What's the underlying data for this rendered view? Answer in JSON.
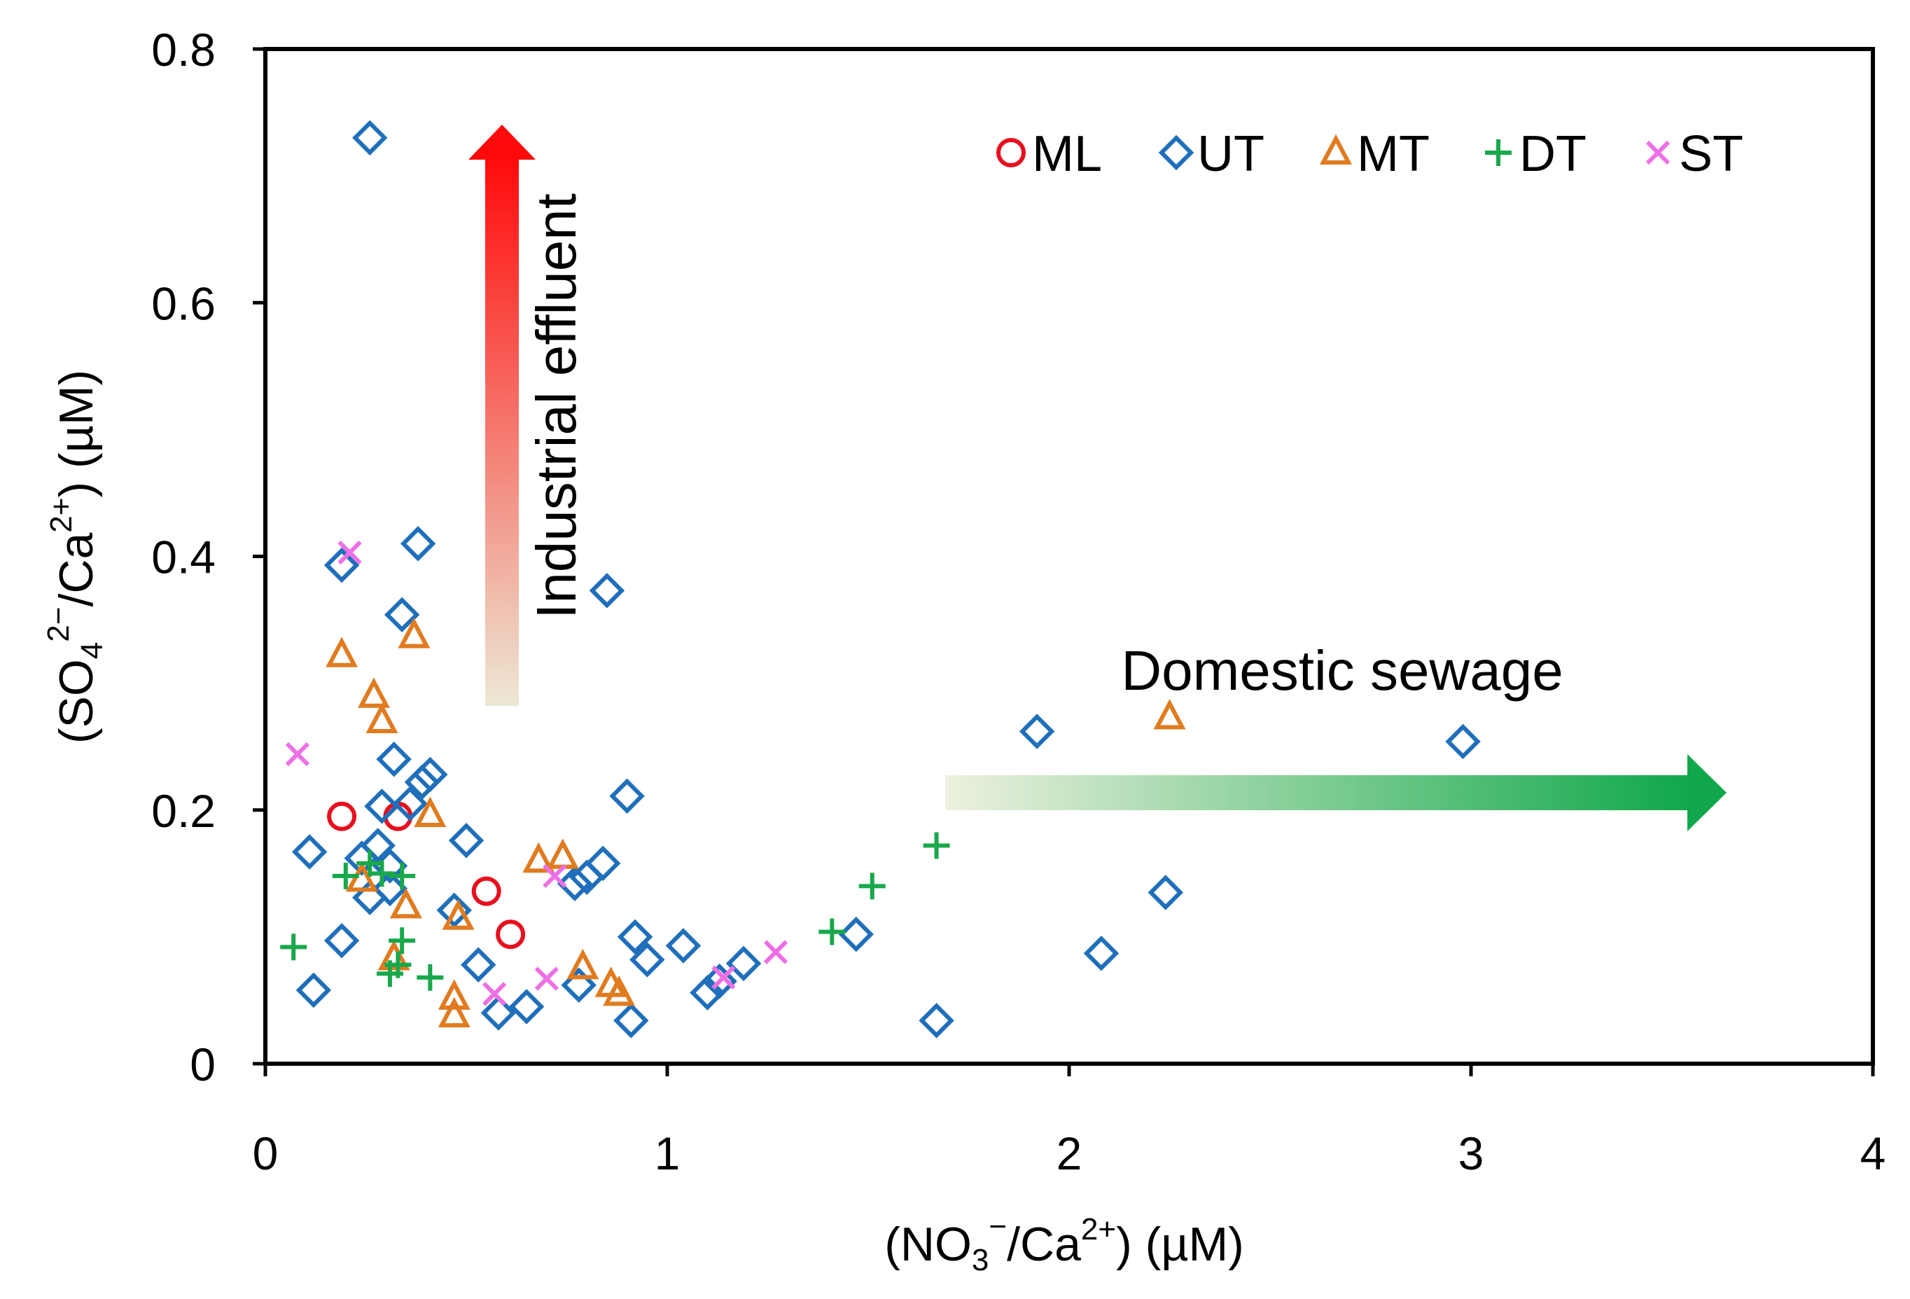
{
  "chart_data": {
    "type": "scatter",
    "xlabel": {
      "pre": "(NO",
      "sub": "3",
      "sup": "−",
      "post": "/Ca",
      "sup2": "2+",
      "tail": ") (µM)"
    },
    "ylabel": {
      "pre": "(SO",
      "sub": "4",
      "sup": "2−",
      "post": "/Ca",
      "sup2": "2+",
      "tail": ") (µM)"
    },
    "xlim": [
      0,
      4
    ],
    "ylim": [
      0,
      0.8
    ],
    "xticks": [
      "0",
      "1",
      "2",
      "3",
      "4"
    ],
    "yticks": [
      "0",
      "0.2",
      "0.4",
      "0.6",
      "0.8"
    ],
    "legend_position": "top-right",
    "annotations": {
      "vertical_arrow": "Industrial effluent",
      "horizontal_arrow": "Domestic sewage"
    },
    "colors": {
      "ML": "#e8101e",
      "UT": "#1f6fba",
      "MT": "#e07b1f",
      "DT": "#18a84b",
      "ST": "#ee6fe6",
      "industrial_arrow": "#ff0a0a",
      "domestic_arrow": "#10a84a"
    },
    "series": [
      {
        "name": "ML",
        "marker": "circle",
        "points": [
          [
            0.19,
            0.195
          ],
          [
            0.33,
            0.195
          ],
          [
            0.55,
            0.136
          ],
          [
            0.61,
            0.102
          ]
        ]
      },
      {
        "name": "UT",
        "marker": "diamond",
        "points": [
          [
            0.26,
            0.73
          ],
          [
            0.38,
            0.41
          ],
          [
            0.19,
            0.393
          ],
          [
            0.34,
            0.354
          ],
          [
            0.85,
            0.373
          ],
          [
            0.32,
            0.24
          ],
          [
            0.41,
            0.228
          ],
          [
            0.39,
            0.222
          ],
          [
            0.36,
            0.205
          ],
          [
            0.29,
            0.203
          ],
          [
            0.9,
            0.211
          ],
          [
            0.11,
            0.167
          ],
          [
            0.24,
            0.162
          ],
          [
            0.28,
            0.172
          ],
          [
            0.31,
            0.156
          ],
          [
            0.5,
            0.176
          ],
          [
            0.77,
            0.142
          ],
          [
            0.8,
            0.147
          ],
          [
            0.84,
            0.158
          ],
          [
            0.26,
            0.131
          ],
          [
            0.31,
            0.138
          ],
          [
            0.47,
            0.121
          ],
          [
            0.19,
            0.097
          ],
          [
            0.53,
            0.078
          ],
          [
            0.58,
            0.04
          ],
          [
            0.65,
            0.045
          ],
          [
            0.78,
            0.062
          ],
          [
            0.91,
            0.034
          ],
          [
            0.92,
            0.1
          ],
          [
            0.95,
            0.082
          ],
          [
            1.04,
            0.093
          ],
          [
            1.1,
            0.056
          ],
          [
            1.13,
            0.065
          ],
          [
            1.19,
            0.079
          ],
          [
            1.47,
            0.102
          ],
          [
            1.67,
            0.034
          ],
          [
            1.92,
            0.262
          ],
          [
            2.08,
            0.087
          ],
          [
            2.24,
            0.135
          ],
          [
            2.98,
            0.254
          ],
          [
            0.12,
            0.058
          ]
        ]
      },
      {
        "name": "MT",
        "marker": "triangle",
        "points": [
          [
            0.37,
            0.337
          ],
          [
            0.19,
            0.322
          ],
          [
            0.27,
            0.29
          ],
          [
            0.29,
            0.27
          ],
          [
            0.41,
            0.196
          ],
          [
            0.68,
            0.16
          ],
          [
            0.74,
            0.163
          ],
          [
            0.24,
            0.145
          ],
          [
            0.35,
            0.124
          ],
          [
            0.48,
            0.115
          ],
          [
            0.32,
            0.083
          ],
          [
            0.47,
            0.052
          ],
          [
            0.47,
            0.038
          ],
          [
            0.79,
            0.076
          ],
          [
            0.86,
            0.062
          ],
          [
            0.88,
            0.055
          ],
          [
            2.25,
            0.273
          ]
        ]
      },
      {
        "name": "DT",
        "marker": "plus",
        "points": [
          [
            0.07,
            0.092
          ],
          [
            0.2,
            0.148
          ],
          [
            0.26,
            0.158
          ],
          [
            0.29,
            0.15
          ],
          [
            0.34,
            0.148
          ],
          [
            0.34,
            0.097
          ],
          [
            0.33,
            0.078
          ],
          [
            0.31,
            0.071
          ],
          [
            0.41,
            0.068
          ],
          [
            1.41,
            0.104
          ],
          [
            1.51,
            0.14
          ],
          [
            1.67,
            0.172
          ]
        ]
      },
      {
        "name": "ST",
        "marker": "cross",
        "points": [
          [
            0.08,
            0.244
          ],
          [
            0.21,
            0.403
          ],
          [
            0.72,
            0.148
          ],
          [
            0.57,
            0.055
          ],
          [
            0.7,
            0.067
          ],
          [
            1.14,
            0.068
          ],
          [
            1.27,
            0.088
          ]
        ]
      }
    ]
  }
}
